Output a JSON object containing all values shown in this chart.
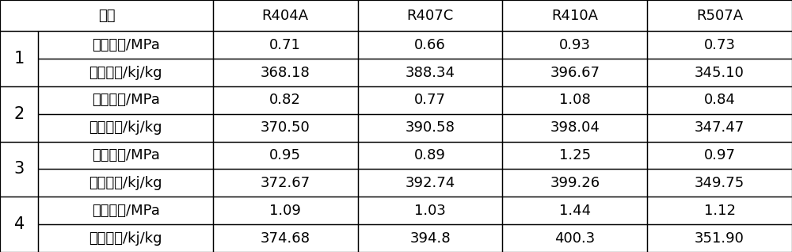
{
  "col_headers": [
    "内容",
    "R404A",
    "R407C",
    "R410A",
    "R507A"
  ],
  "row_groups": [
    {
      "group_label": "1",
      "rows": [
        [
          "工作压力/MPa",
          "0.71",
          "0.66",
          "0.93",
          "0.73"
        ],
        [
          "汽化潜热/kj/kg",
          "368.18",
          "388.34",
          "396.67",
          "345.10"
        ]
      ]
    },
    {
      "group_label": "2",
      "rows": [
        [
          "工作压力/MPa",
          "0.82",
          "0.77",
          "1.08",
          "0.84"
        ],
        [
          "汽化潜热/kj/kg",
          "370.50",
          "390.58",
          "398.04",
          "347.47"
        ]
      ]
    },
    {
      "group_label": "3",
      "rows": [
        [
          "工作压力/MPa",
          "0.95",
          "0.89",
          "1.25",
          "0.97"
        ],
        [
          "汽化潜热/kj/kg",
          "372.67",
          "392.74",
          "399.26",
          "349.75"
        ]
      ]
    },
    {
      "group_label": "4",
      "rows": [
        [
          "工作压力/MPa",
          "1.09",
          "1.03",
          "1.44",
          "1.12"
        ],
        [
          "汽化潜热/kj/kg",
          "374.68",
          "394.8",
          "400.3",
          "351.90"
        ]
      ]
    }
  ],
  "bg_color": "#ffffff",
  "line_color": "#000000",
  "text_color": "#000000",
  "font_size": 13,
  "header_font_size": 13,
  "group_label_font_size": 15
}
